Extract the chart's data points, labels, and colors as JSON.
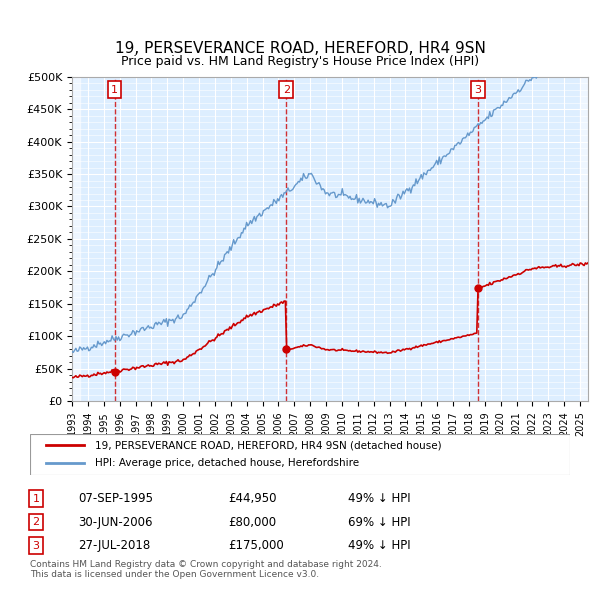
{
  "title": "19, PERSEVERANCE ROAD, HEREFORD, HR4 9SN",
  "subtitle": "Price paid vs. HM Land Registry's House Price Index (HPI)",
  "ylim": [
    0,
    500000
  ],
  "yticks": [
    0,
    50000,
    100000,
    150000,
    200000,
    250000,
    300000,
    350000,
    400000,
    450000,
    500000
  ],
  "ytick_labels": [
    "£0",
    "£50K",
    "£100K",
    "£150K",
    "£200K",
    "£250K",
    "£300K",
    "£350K",
    "£400K",
    "£450K",
    "£500K"
  ],
  "xlim_start": 1993.0,
  "xlim_end": 2025.5,
  "xticks": [
    1993,
    1994,
    1995,
    1996,
    1997,
    1998,
    1999,
    2000,
    2001,
    2002,
    2003,
    2004,
    2005,
    2006,
    2007,
    2008,
    2009,
    2010,
    2011,
    2012,
    2013,
    2014,
    2015,
    2016,
    2017,
    2018,
    2019,
    2020,
    2021,
    2022,
    2023,
    2024,
    2025
  ],
  "sale_dates": [
    1995.68,
    2006.5,
    2018.56
  ],
  "sale_prices": [
    44950,
    80000,
    175000
  ],
  "sale_labels": [
    "1",
    "2",
    "3"
  ],
  "hpi_color": "#6699cc",
  "price_color": "#cc0000",
  "vline_color": "#cc0000",
  "box_color": "#cc0000",
  "bg_plot_color": "#ddeeff",
  "hatch_color": "#bbccdd",
  "grid_color": "#ffffff",
  "legend_line1": "19, PERSEVERANCE ROAD, HEREFORD, HR4 9SN (detached house)",
  "legend_line2": "HPI: Average price, detached house, Herefordshire",
  "table_rows": [
    [
      "1",
      "07-SEP-1995",
      "£44,950",
      "49% ↓ HPI"
    ],
    [
      "2",
      "30-JUN-2006",
      "£80,000",
      "69% ↓ HPI"
    ],
    [
      "3",
      "27-JUL-2018",
      "£175,000",
      "49% ↓ HPI"
    ]
  ],
  "footnote": "Contains HM Land Registry data © Crown copyright and database right 2024.\nThis data is licensed under the Open Government Licence v3.0.",
  "font_family": "DejaVu Sans"
}
